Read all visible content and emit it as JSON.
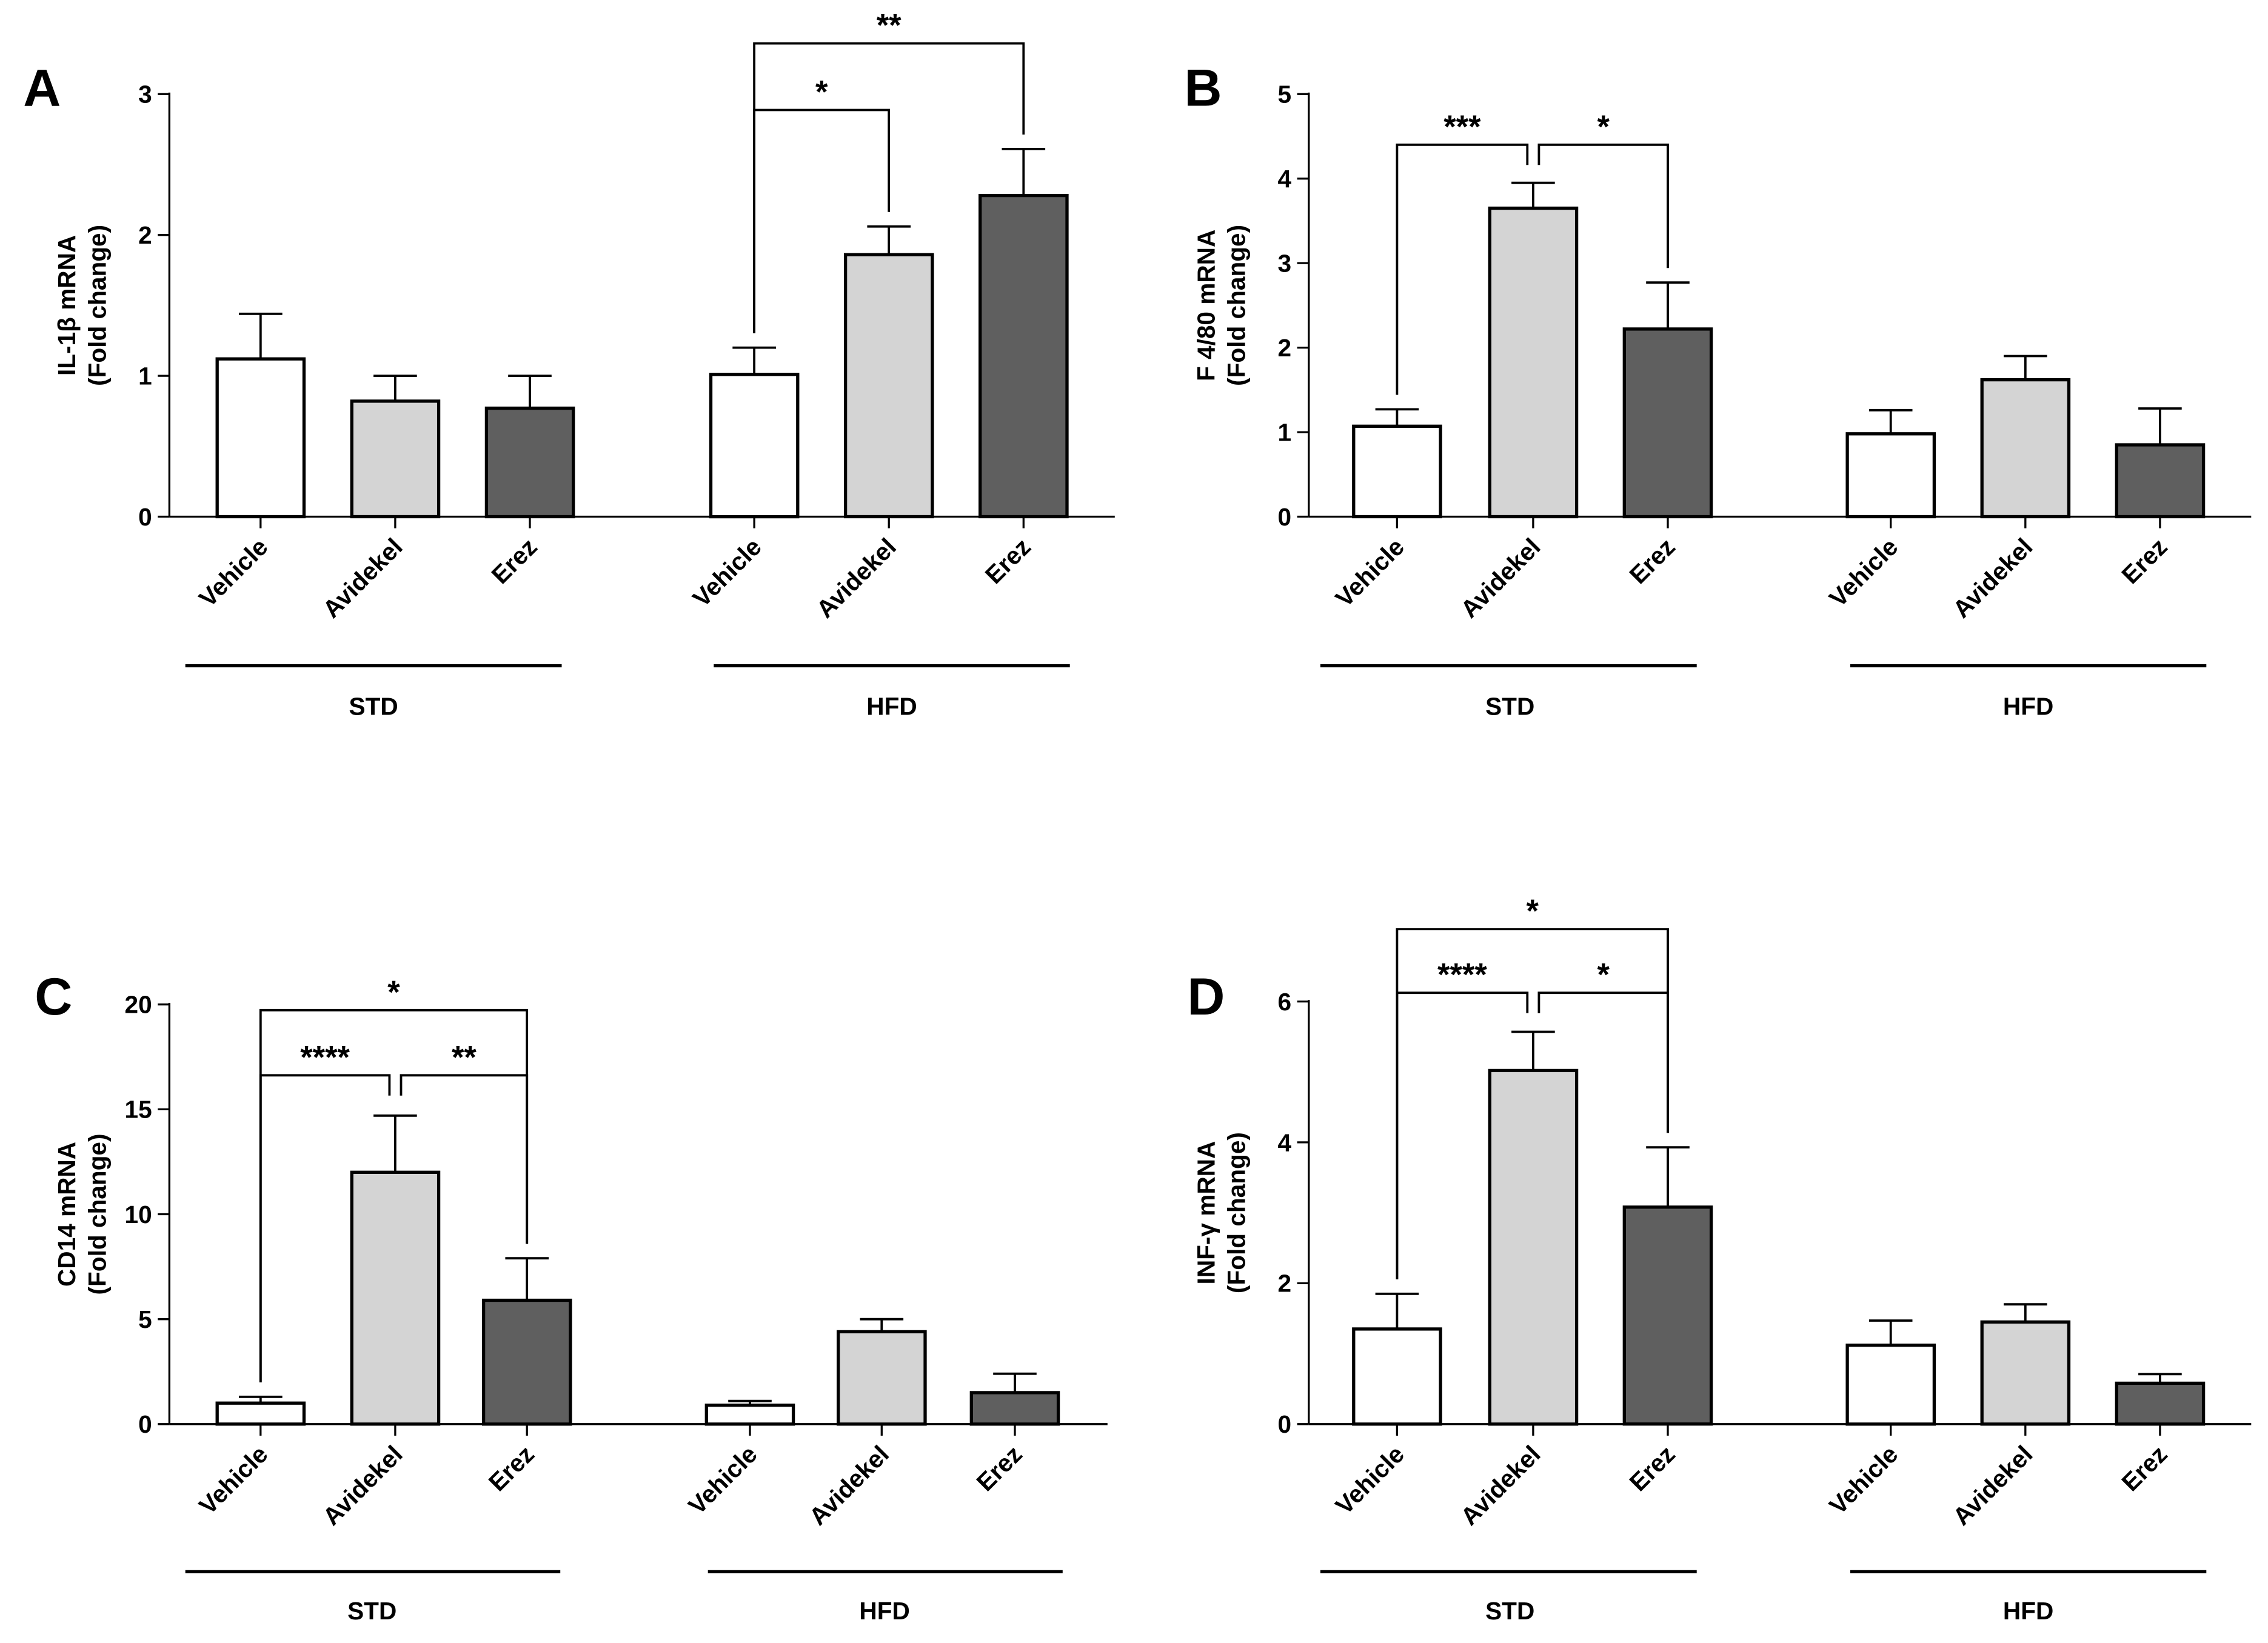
{
  "colors": {
    "vehicle": "#ffffff",
    "avidekel": "#d4d4d4",
    "erez": "#5f5f5f",
    "stroke": "#000000"
  },
  "chart_data": [
    {
      "type": "bar",
      "panel_label": "A",
      "ylabel_line1": "IL-1β mRNA",
      "ylabel_line2": "(Fold change)",
      "ylim": [
        0,
        3
      ],
      "yticks": [
        "0",
        "1",
        "2",
        "3"
      ],
      "categories": [
        "Vehicle",
        "Avidekel",
        "Erez",
        "Vehicle",
        "Avidekel",
        "Erez"
      ],
      "groups": [
        "STD",
        "HFD"
      ],
      "values": [
        1.12,
        0.82,
        0.77,
        1.01,
        1.86,
        2.28
      ],
      "errors": [
        0.32,
        0.18,
        0.23,
        0.19,
        0.2,
        0.33
      ],
      "significance": [
        {
          "from": 3,
          "to": 4,
          "label": "*"
        },
        {
          "from": 3,
          "to": 5,
          "label": "**"
        }
      ]
    },
    {
      "type": "bar",
      "panel_label": "B",
      "ylabel_line1": "F 4/80 mRNA",
      "ylabel_line2": "(Fold change)",
      "ylim": [
        0,
        5
      ],
      "yticks": [
        "0",
        "1",
        "2",
        "3",
        "4",
        "5"
      ],
      "categories": [
        "Vehicle",
        "Avidekel",
        "Erez",
        "Vehicle",
        "Avidekel",
        "Erez"
      ],
      "groups": [
        "STD",
        "HFD"
      ],
      "values": [
        1.07,
        3.65,
        2.22,
        0.98,
        1.62,
        0.85
      ],
      "errors": [
        0.2,
        0.3,
        0.55,
        0.28,
        0.28,
        0.43
      ],
      "significance": [
        {
          "from": 0,
          "to": 1,
          "label": "***"
        },
        {
          "from": 1,
          "to": 2,
          "label": "*"
        }
      ]
    },
    {
      "type": "bar",
      "panel_label": "C",
      "ylabel_line1": "CD14 mRNA",
      "ylabel_line2": "(Fold change)",
      "ylim": [
        0,
        20
      ],
      "yticks": [
        "0",
        "5",
        "10",
        "15",
        "20"
      ],
      "categories": [
        "Vehicle",
        "Avidekel",
        "Erez",
        "Vehicle",
        "Avidekel",
        "Erez"
      ],
      "groups": [
        "STD",
        "HFD"
      ],
      "values": [
        1.0,
        12.0,
        5.9,
        0.9,
        4.4,
        1.5
      ],
      "errors": [
        0.3,
        2.7,
        2.0,
        0.2,
        0.6,
        0.9
      ],
      "significance": [
        {
          "from": 0,
          "to": 1,
          "label": "****"
        },
        {
          "from": 1,
          "to": 2,
          "label": "**"
        },
        {
          "from": 0,
          "to": 2,
          "label": "*"
        }
      ]
    },
    {
      "type": "bar",
      "panel_label": "D",
      "ylabel_line1": "INF-γ mRNA",
      "ylabel_line2": "(Fold change)",
      "ylim": [
        0,
        6
      ],
      "yticks": [
        "0",
        "2",
        "4",
        "6"
      ],
      "categories": [
        "Vehicle",
        "Avidekel",
        "Erez",
        "Vehicle",
        "Avidekel",
        "Erez"
      ],
      "groups": [
        "STD",
        "HFD"
      ],
      "values": [
        1.35,
        5.02,
        3.08,
        1.12,
        1.45,
        0.58
      ],
      "errors": [
        0.5,
        0.55,
        0.85,
        0.35,
        0.25,
        0.13
      ],
      "significance": [
        {
          "from": 0,
          "to": 1,
          "label": "****"
        },
        {
          "from": 1,
          "to": 2,
          "label": "*"
        },
        {
          "from": 0,
          "to": 2,
          "label": "*"
        }
      ]
    }
  ]
}
